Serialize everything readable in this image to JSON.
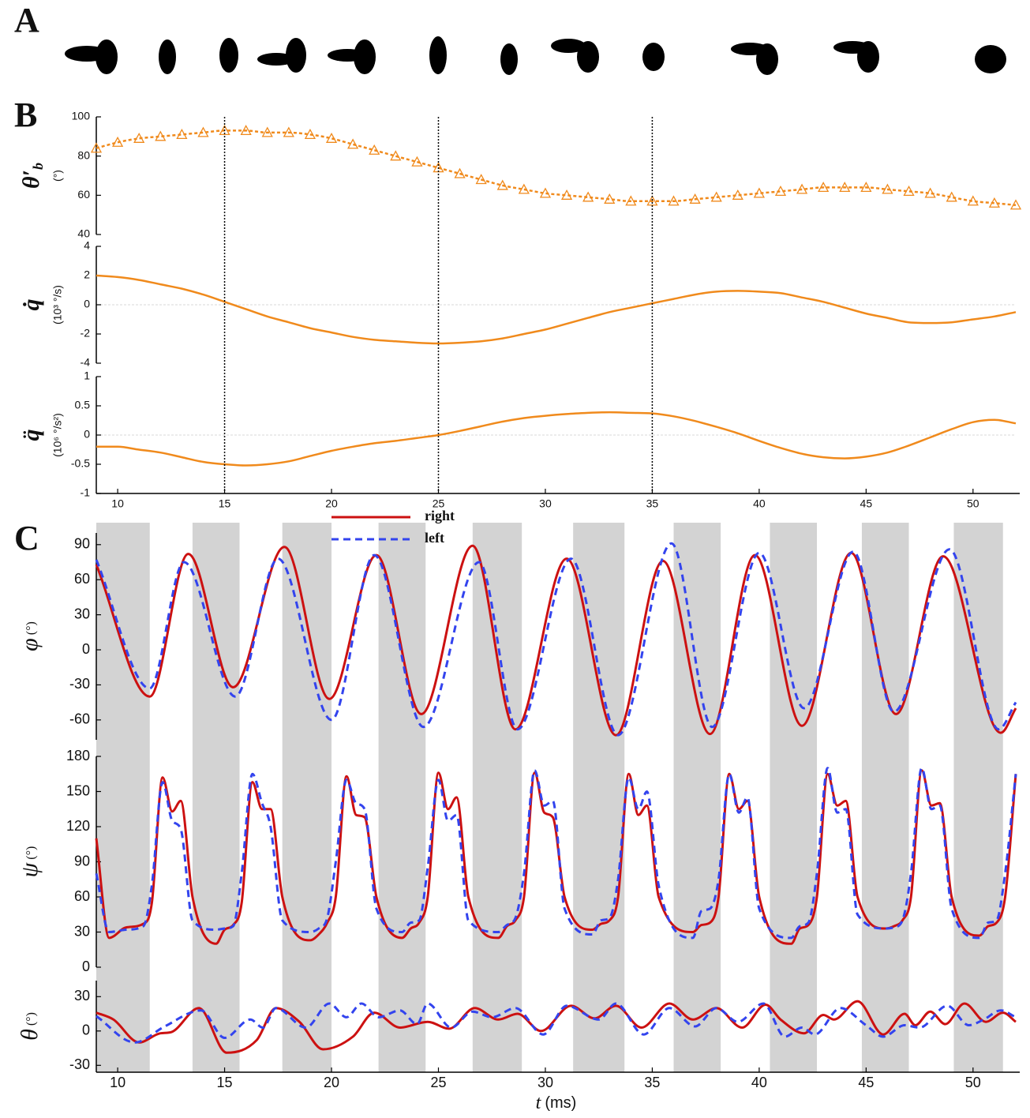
{
  "figure": {
    "panels": [
      "A",
      "B",
      "C"
    ]
  },
  "chart_data": [
    {
      "type": "line",
      "ylabel": "θ′",
      "ylabel_sub": "b",
      "yunit": "(°)",
      "color": "#f08a1c",
      "marker": "triangle",
      "line_style": "dashed",
      "x": [
        9,
        10,
        11,
        12,
        13,
        14,
        15,
        16,
        17,
        18,
        19,
        20,
        21,
        22,
        23,
        24,
        25,
        26,
        27,
        28,
        29,
        30,
        31,
        32,
        33,
        34,
        35,
        36,
        37,
        38,
        39,
        40,
        41,
        42,
        43,
        44,
        45,
        46,
        47,
        48,
        49,
        50,
        51,
        52
      ],
      "values": [
        84,
        87,
        89,
        90,
        91,
        92,
        93,
        93,
        92,
        92,
        91,
        89,
        86,
        83,
        80,
        77,
        74,
        71,
        68,
        65,
        63,
        61,
        60,
        59,
        58,
        57,
        57,
        57,
        58,
        59,
        60,
        61,
        62,
        63,
        64,
        64,
        64,
        63,
        62,
        61,
        59,
        57,
        56,
        55
      ],
      "xlim": [
        9,
        52
      ],
      "ylim": [
        40,
        100
      ],
      "yticks": [
        40,
        60,
        80,
        100
      ]
    },
    {
      "type": "line",
      "ylabel": "q̇",
      "yunit": "(10³ °/s)",
      "color": "#f08a1c",
      "zeroline": true,
      "x": [
        9,
        10,
        11,
        12,
        13,
        14,
        15,
        16,
        17,
        18,
        19,
        20,
        21,
        22,
        23,
        24,
        25,
        26,
        27,
        28,
        29,
        30,
        31,
        32,
        33,
        34,
        35,
        36,
        37,
        38,
        39,
        40,
        41,
        42,
        43,
        44,
        45,
        46,
        47,
        48,
        49,
        50,
        51,
        52
      ],
      "values": [
        2.0,
        1.9,
        1.7,
        1.4,
        1.1,
        0.7,
        0.2,
        -0.3,
        -0.8,
        -1.2,
        -1.6,
        -1.9,
        -2.2,
        -2.4,
        -2.5,
        -2.6,
        -2.65,
        -2.6,
        -2.5,
        -2.3,
        -2.0,
        -1.7,
        -1.3,
        -0.9,
        -0.5,
        -0.2,
        0.1,
        0.4,
        0.7,
        0.9,
        0.95,
        0.9,
        0.8,
        0.5,
        0.2,
        -0.2,
        -0.6,
        -0.9,
        -1.2,
        -1.25,
        -1.2,
        -1.0,
        -0.8,
        -0.5
      ],
      "xlim": [
        9,
        52
      ],
      "ylim": [
        -4,
        4
      ],
      "yticks": [
        -4,
        -2,
        0,
        2,
        4
      ]
    },
    {
      "type": "line",
      "ylabel": "q̈",
      "yunit": "(10⁶ °/s²)",
      "color": "#f08a1c",
      "zeroline": true,
      "vlines": [
        15,
        25,
        35
      ],
      "x": [
        9,
        10,
        11,
        12,
        13,
        14,
        15,
        16,
        17,
        18,
        19,
        20,
        21,
        22,
        23,
        24,
        25,
        26,
        27,
        28,
        29,
        30,
        31,
        32,
        33,
        34,
        35,
        36,
        37,
        38,
        39,
        40,
        41,
        42,
        43,
        44,
        45,
        46,
        47,
        48,
        49,
        50,
        51,
        52
      ],
      "values": [
        -0.2,
        -0.2,
        -0.25,
        -0.3,
        -0.38,
        -0.46,
        -0.5,
        -0.52,
        -0.5,
        -0.45,
        -0.36,
        -0.27,
        -0.2,
        -0.14,
        -0.1,
        -0.05,
        0.0,
        0.07,
        0.15,
        0.23,
        0.29,
        0.33,
        0.36,
        0.38,
        0.39,
        0.38,
        0.37,
        0.32,
        0.24,
        0.14,
        0.03,
        -0.1,
        -0.22,
        -0.32,
        -0.38,
        -0.4,
        -0.37,
        -0.3,
        -0.18,
        -0.04,
        0.1,
        0.22,
        0.26,
        0.2
      ],
      "xlim": [
        9,
        52
      ],
      "ylim": [
        -1,
        1
      ],
      "yticks": [
        -1,
        -0.5,
        0,
        0.5,
        1
      ],
      "xticks": [
        10,
        15,
        20,
        25,
        30,
        35,
        40,
        45,
        50
      ]
    },
    {
      "type": "line",
      "ylabel": "φ",
      "yunit": "(°)",
      "legend": "top",
      "shaded": [
        [
          9,
          11.5
        ],
        [
          13.5,
          15.7
        ],
        [
          17.7,
          20
        ],
        [
          22.2,
          24.4
        ],
        [
          26.6,
          28.9
        ],
        [
          31.3,
          33.7
        ],
        [
          36,
          38.2
        ],
        [
          40.5,
          42.7
        ],
        [
          44.8,
          47
        ],
        [
          49.1,
          51.4
        ]
      ],
      "series": [
        {
          "name": "right",
          "color": "#cc1111",
          "line_style": "solid",
          "x": [
            9,
            11.5,
            13.3,
            15.4,
            17.8,
            19.9,
            22.1,
            24.2,
            26.6,
            28.6,
            31.0,
            33.3,
            35.5,
            37.7,
            39.8,
            42.0,
            44.3,
            46.4,
            48.6,
            51.3,
            52
          ],
          "values": [
            73,
            -40,
            82,
            -32,
            88,
            -42,
            81,
            -55,
            89,
            -68,
            78,
            -73,
            76,
            -72,
            81,
            -65,
            83,
            -55,
            80,
            -71,
            -50
          ]
        },
        {
          "name": "left",
          "color": "#3344ee",
          "line_style": "dashed",
          "x": [
            9,
            11.5,
            13.1,
            15.5,
            17.5,
            20,
            22.0,
            24.3,
            26.9,
            28.7,
            31.2,
            33.4,
            35.9,
            37.8,
            40.0,
            42.1,
            44.4,
            46.3,
            48.9,
            51.2,
            52
          ],
          "values": [
            77,
            -33,
            75,
            -40,
            78,
            -60,
            81,
            -66,
            75,
            -68,
            78,
            -73,
            91,
            -66,
            83,
            -50,
            84,
            -53,
            86,
            -68,
            -45
          ]
        }
      ],
      "xlim": [
        9,
        52
      ],
      "ylim": [
        -77,
        100
      ],
      "yticks": [
        -60,
        -30,
        0,
        30,
        60,
        90
      ]
    },
    {
      "type": "line",
      "ylabel": "ψ",
      "yunit": "(°)",
      "x": [
        9.0,
        9.6,
        10.4,
        11.2,
        11.6,
        12.1,
        12.55,
        12.95,
        13.5,
        14.6,
        15.0,
        15.4,
        15.8,
        16.3,
        16.75,
        17.15,
        17.7,
        19.0,
        19.4,
        19.8,
        20.2,
        20.7,
        21.15,
        21.55,
        22.1,
        23.3,
        23.7,
        24.1,
        24.5,
        25.0,
        25.45,
        25.85,
        26.4,
        27.8,
        28.2,
        28.6,
        29.0,
        29.5,
        29.95,
        30.35,
        30.9,
        32.2,
        32.6,
        33.0,
        33.4,
        33.9,
        34.35,
        34.75,
        35.3,
        36.9,
        37.3,
        37.7,
        38.1,
        38.6,
        39.05,
        39.45,
        40.0,
        41.5,
        41.9,
        42.3,
        42.7,
        43.2,
        43.65,
        44.05,
        44.6,
        45.9,
        46.3,
        46.7,
        47.1,
        47.6,
        48.05,
        48.45,
        49.0,
        50.3,
        50.7,
        51.1,
        51.5,
        52.0
      ],
      "series": [
        {
          "name": "right",
          "color": "#cc1111",
          "line_style": "solid",
          "values": [
            110,
            25,
            34,
            37,
            55,
            162,
            133,
            142,
            60,
            20,
            32,
            36,
            55,
            158,
            135,
            135,
            60,
            23,
            28,
            38,
            60,
            163,
            130,
            128,
            60,
            25,
            33,
            38,
            60,
            166,
            135,
            145,
            60,
            25,
            35,
            40,
            60,
            166,
            132,
            128,
            60,
            32,
            37,
            40,
            60,
            165,
            130,
            138,
            60,
            30,
            36,
            38,
            60,
            165,
            135,
            142,
            60,
            20,
            33,
            36,
            60,
            165,
            138,
            142,
            60,
            33,
            35,
            40,
            60,
            168,
            138,
            140,
            60,
            27,
            35,
            38,
            60,
            165
          ]
        },
        {
          "name": "left",
          "color": "#3344ee",
          "line_style": "dashed",
          "values": [
            80,
            30,
            32,
            35,
            70,
            158,
            125,
            118,
            40,
            32,
            33,
            35,
            80,
            165,
            140,
            120,
            40,
            30,
            33,
            42,
            90,
            160,
            140,
            135,
            50,
            30,
            38,
            40,
            85,
            160,
            125,
            130,
            40,
            30,
            36,
            42,
            80,
            168,
            138,
            142,
            50,
            28,
            40,
            42,
            75,
            162,
            135,
            150,
            70,
            25,
            48,
            50,
            75,
            165,
            132,
            145,
            50,
            25,
            35,
            38,
            80,
            170,
            132,
            135,
            45,
            33,
            34,
            40,
            80,
            170,
            135,
            138,
            50,
            25,
            38,
            40,
            80,
            165
          ]
        }
      ],
      "xlim": [
        9,
        52
      ],
      "ylim": [
        0,
        180
      ],
      "yticks": [
        0,
        30,
        60,
        90,
        120,
        150,
        180
      ]
    },
    {
      "type": "line",
      "ylabel": "θ",
      "yunit": "(°)",
      "xlabel": "t",
      "xunit": "(ms)",
      "series": [
        {
          "name": "right",
          "color": "#cc1111",
          "line_style": "solid",
          "x": [
            9,
            9.8,
            11.0,
            12,
            12.5,
            13.8,
            15.1,
            16.5,
            17.4,
            18.5,
            19.6,
            21,
            22,
            23.2,
            24.5,
            25.5,
            26.7,
            27.8,
            28.7,
            29.8,
            31.2,
            32.3,
            33.3,
            34.5,
            35.8,
            36.9,
            38.0,
            39.2,
            40.3,
            41.0,
            42.1,
            43.0,
            43.5,
            44.6,
            45.8,
            46.8,
            47.3,
            48.0,
            48.7,
            49.6,
            50.6,
            51.4,
            52
          ],
          "values": [
            16,
            10,
            -10,
            -2,
            -1,
            20,
            -19,
            -8,
            20,
            8,
            -16,
            -5,
            16,
            3,
            8,
            2,
            20,
            10,
            15,
            0,
            22,
            11,
            22,
            3,
            24,
            10,
            20,
            3,
            23,
            10,
            -2,
            14,
            10,
            26,
            -3,
            15,
            5,
            17,
            6,
            24,
            8,
            16,
            8
          ]
        },
        {
          "name": "left",
          "color": "#3344ee",
          "line_style": "dashed",
          "x": [
            9,
            10.8,
            12.2,
            13.9,
            15.0,
            16.2,
            16.8,
            17.4,
            18.8,
            19.9,
            20.7,
            21.4,
            22.2,
            23.2,
            24.0,
            24.5,
            25.6,
            26.6,
            27.5,
            28.6,
            29.9,
            31.0,
            32.5,
            33.3,
            34.6,
            35.8,
            37.0,
            38.0,
            39.0,
            40.2,
            41.2,
            42.0,
            42.6,
            43.8,
            45.0,
            45.8,
            46.8,
            47.5,
            48.8,
            49.8,
            50.5,
            51.3,
            52
          ],
          "values": [
            13,
            -10,
            4,
            18,
            -6,
            10,
            3,
            20,
            3,
            24,
            12,
            24,
            12,
            18,
            6,
            24,
            3,
            17,
            12,
            20,
            -3,
            22,
            10,
            24,
            -3,
            20,
            4,
            20,
            8,
            24,
            -5,
            3,
            -3,
            20,
            5,
            -5,
            5,
            3,
            22,
            5,
            10,
            18,
            12
          ]
        }
      ],
      "xlim": [
        9,
        52
      ],
      "ylim": [
        -36,
        44
      ],
      "yticks": [
        -30,
        0,
        30
      ],
      "xticks": [
        10,
        15,
        20,
        25,
        30,
        35,
        40,
        45,
        50
      ]
    }
  ]
}
